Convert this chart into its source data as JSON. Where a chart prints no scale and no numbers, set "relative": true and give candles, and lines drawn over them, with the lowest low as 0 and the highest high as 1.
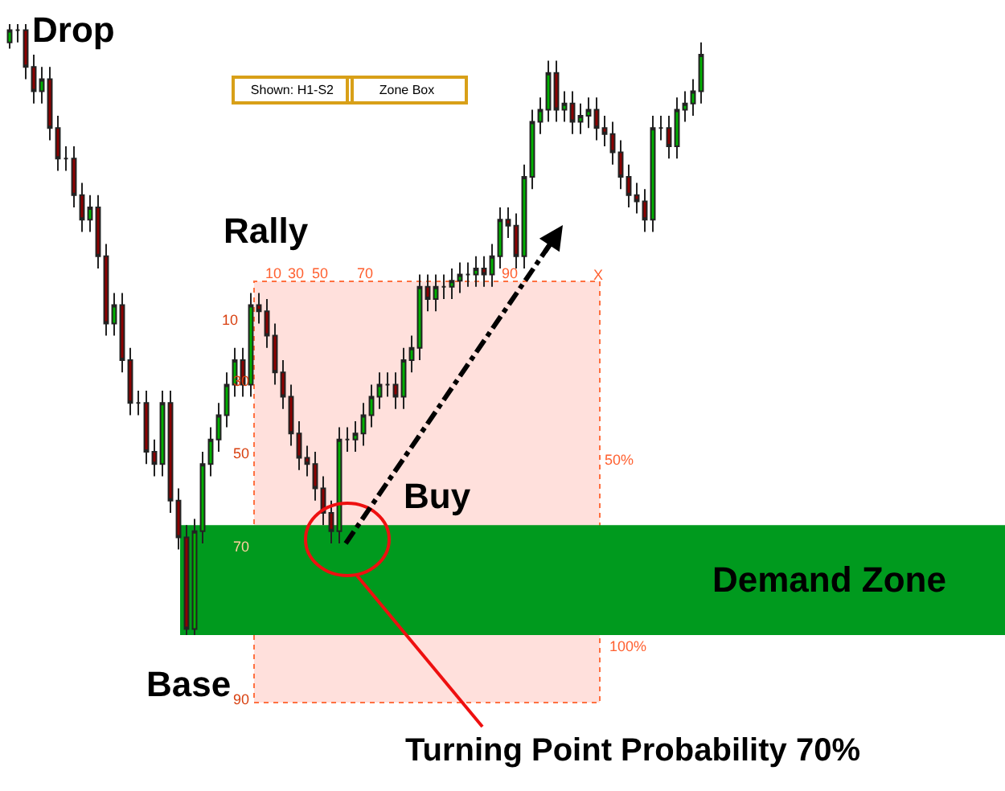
{
  "chart_data": {
    "type": "candlestick",
    "relative": true,
    "categories": [
      null,
      null,
      null,
      null,
      null,
      null,
      null,
      null,
      null,
      null,
      null,
      null,
      null,
      null,
      null,
      null,
      null,
      null,
      null,
      null,
      null,
      null,
      null,
      null,
      null,
      null,
      null,
      null,
      null,
      null,
      null,
      null,
      null,
      null,
      null,
      null,
      null,
      null,
      null,
      null,
      null,
      null,
      null,
      null,
      null,
      null,
      null,
      null,
      null,
      null,
      null,
      null,
      null,
      null,
      null,
      null,
      null,
      null,
      null,
      null,
      null,
      null,
      null,
      null,
      null,
      null,
      null,
      null,
      null,
      null,
      null,
      null,
      null,
      null,
      null,
      null,
      null,
      null,
      null,
      null,
      null,
      null,
      null,
      null,
      null,
      null,
      null
    ],
    "ohlc": [
      [
        0.97,
        1.0,
        0.96,
        0.99
      ],
      [
        0.99,
        1.0,
        0.97,
        0.99
      ],
      [
        0.99,
        1.0,
        0.91,
        0.93
      ],
      [
        0.93,
        0.95,
        0.87,
        0.89
      ],
      [
        0.89,
        0.93,
        0.87,
        0.91
      ],
      [
        0.91,
        0.93,
        0.81,
        0.83
      ],
      [
        0.83,
        0.85,
        0.76,
        0.78
      ],
      [
        0.78,
        0.8,
        0.76,
        0.78
      ],
      [
        0.78,
        0.8,
        0.7,
        0.72
      ],
      [
        0.72,
        0.74,
        0.66,
        0.68
      ],
      [
        0.68,
        0.72,
        0.66,
        0.7
      ],
      [
        0.7,
        0.72,
        0.6,
        0.62
      ],
      [
        0.62,
        0.64,
        0.49,
        0.51
      ],
      [
        0.51,
        0.56,
        0.49,
        0.54
      ],
      [
        0.54,
        0.56,
        0.43,
        0.45
      ],
      [
        0.45,
        0.47,
        0.36,
        0.38
      ],
      [
        0.38,
        0.4,
        0.36,
        0.38
      ],
      [
        0.38,
        0.4,
        0.28,
        0.3
      ],
      [
        0.3,
        0.32,
        0.26,
        0.28
      ],
      [
        0.28,
        0.4,
        0.26,
        0.38
      ],
      [
        0.38,
        0.4,
        0.2,
        0.22
      ],
      [
        0.22,
        0.24,
        0.14,
        0.16
      ],
      [
        0.16,
        0.18,
        0.0,
        0.01
      ],
      [
        0.01,
        0.19,
        0.0,
        0.17
      ],
      [
        0.17,
        0.3,
        0.15,
        0.28
      ],
      [
        0.28,
        0.34,
        0.26,
        0.32
      ],
      [
        0.32,
        0.38,
        0.3,
        0.36
      ],
      [
        0.36,
        0.43,
        0.34,
        0.41
      ],
      [
        0.41,
        0.47,
        0.39,
        0.45
      ],
      [
        0.45,
        0.47,
        0.39,
        0.41
      ],
      [
        0.41,
        0.56,
        0.39,
        0.54
      ],
      [
        0.54,
        0.56,
        0.51,
        0.53
      ],
      [
        0.53,
        0.55,
        0.47,
        0.49
      ],
      [
        0.49,
        0.51,
        0.41,
        0.43
      ],
      [
        0.43,
        0.45,
        0.37,
        0.39
      ],
      [
        0.39,
        0.41,
        0.31,
        0.33
      ],
      [
        0.33,
        0.35,
        0.27,
        0.29
      ],
      [
        0.29,
        0.31,
        0.26,
        0.28
      ],
      [
        0.28,
        0.3,
        0.22,
        0.24
      ],
      [
        0.24,
        0.26,
        0.18,
        0.2
      ],
      [
        0.2,
        0.22,
        0.15,
        0.17
      ],
      [
        0.17,
        0.34,
        0.15,
        0.32
      ],
      [
        0.32,
        0.34,
        0.3,
        0.32
      ],
      [
        0.32,
        0.35,
        0.3,
        0.33
      ],
      [
        0.33,
        0.38,
        0.31,
        0.36
      ],
      [
        0.36,
        0.41,
        0.34,
        0.39
      ],
      [
        0.39,
        0.43,
        0.37,
        0.41
      ],
      [
        0.41,
        0.43,
        0.39,
        0.41
      ],
      [
        0.41,
        0.43,
        0.37,
        0.39
      ],
      [
        0.39,
        0.47,
        0.37,
        0.45
      ],
      [
        0.45,
        0.49,
        0.43,
        0.47
      ],
      [
        0.47,
        0.59,
        0.45,
        0.57
      ],
      [
        0.57,
        0.59,
        0.53,
        0.55
      ],
      [
        0.55,
        0.59,
        0.53,
        0.57
      ],
      [
        0.57,
        0.59,
        0.55,
        0.57
      ],
      [
        0.57,
        0.6,
        0.55,
        0.58
      ],
      [
        0.58,
        0.61,
        0.56,
        0.59
      ],
      [
        0.59,
        0.61,
        0.57,
        0.59
      ],
      [
        0.59,
        0.62,
        0.57,
        0.6
      ],
      [
        0.6,
        0.62,
        0.57,
        0.59
      ],
      [
        0.59,
        0.64,
        0.57,
        0.62
      ],
      [
        0.62,
        0.7,
        0.6,
        0.68
      ],
      [
        0.68,
        0.7,
        0.65,
        0.67
      ],
      [
        0.67,
        0.69,
        0.6,
        0.62
      ],
      [
        0.62,
        0.77,
        0.6,
        0.75
      ],
      [
        0.75,
        0.86,
        0.73,
        0.84
      ],
      [
        0.84,
        0.88,
        0.82,
        0.86
      ],
      [
        0.86,
        0.94,
        0.84,
        0.92
      ],
      [
        0.92,
        0.94,
        0.84,
        0.86
      ],
      [
        0.86,
        0.89,
        0.84,
        0.87
      ],
      [
        0.87,
        0.89,
        0.82,
        0.84
      ],
      [
        0.84,
        0.87,
        0.82,
        0.85
      ],
      [
        0.85,
        0.88,
        0.83,
        0.86
      ],
      [
        0.86,
        0.88,
        0.81,
        0.83
      ],
      [
        0.83,
        0.85,
        0.8,
        0.82
      ],
      [
        0.82,
        0.84,
        0.77,
        0.79
      ],
      [
        0.79,
        0.81,
        0.73,
        0.75
      ],
      [
        0.75,
        0.77,
        0.7,
        0.72
      ],
      [
        0.72,
        0.74,
        0.69,
        0.71
      ],
      [
        0.71,
        0.73,
        0.66,
        0.68
      ],
      [
        0.68,
        0.85,
        0.66,
        0.83
      ],
      [
        0.83,
        0.85,
        0.81,
        0.83
      ],
      [
        0.83,
        0.85,
        0.78,
        0.8
      ],
      [
        0.8,
        0.88,
        0.78,
        0.86
      ],
      [
        0.86,
        0.89,
        0.84,
        0.87
      ],
      [
        0.87,
        0.91,
        0.85,
        0.89
      ],
      [
        0.89,
        0.97,
        0.87,
        0.95
      ]
    ],
    "bands": [
      {
        "axis": "y",
        "from": 0,
        "to": 0.18,
        "label": "Demand Zone",
        "color": "#009a1e"
      }
    ],
    "annotations": [
      "Drop",
      "Rally",
      "Base",
      "Buy",
      "Turning Point Probability 70%",
      "Shown: H1-S2",
      "Zone Box",
      "10",
      "30",
      "50",
      "70",
      "90",
      "X",
      "10",
      "30",
      "50",
      "70",
      "90",
      "50%",
      "100%"
    ]
  }
}
